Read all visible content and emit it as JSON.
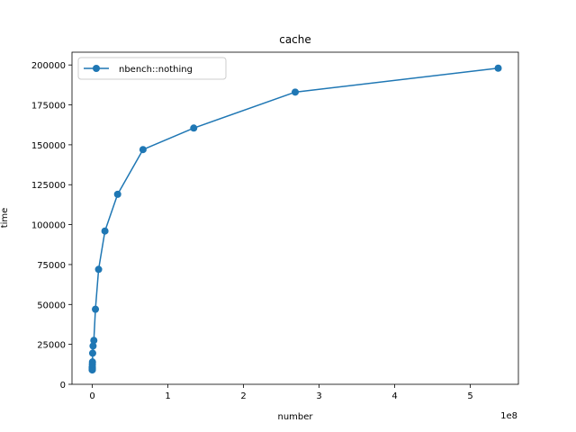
{
  "chart_data": {
    "type": "line",
    "title": "cache",
    "xlabel": "number",
    "ylabel": "time",
    "x_offset_label": "1e8",
    "xlim": [
      -26800000,
      563600000
    ],
    "ylim": [
      0,
      208000
    ],
    "xticks": [
      0,
      100000000,
      200000000,
      300000000,
      400000000,
      500000000
    ],
    "xtick_labels": [
      "0",
      "1",
      "2",
      "3",
      "4",
      "5"
    ],
    "yticks": [
      0,
      25000,
      50000,
      75000,
      100000,
      125000,
      150000,
      175000,
      200000
    ],
    "ytick_labels": [
      "0",
      "25000",
      "50000",
      "75000",
      "100000",
      "125000",
      "150000",
      "175000",
      "200000"
    ],
    "grid": false,
    "legend_position": "top-left",
    "series": [
      {
        "name": "nbench::nothing",
        "color": "#1f77b4",
        "marker": "circle",
        "x": [
          1,
          2,
          4,
          8,
          16,
          32,
          64,
          128,
          256,
          512,
          1024,
          2048,
          4096,
          8192,
          16384,
          32768,
          65536,
          131072,
          262144,
          524288,
          1048576,
          2097152,
          4194304,
          8388608,
          16777216,
          33554432,
          67108864,
          134217728,
          268435456,
          536870912
        ],
        "y": [
          9000,
          9100,
          9200,
          9300,
          9400,
          9500,
          9600,
          9700,
          9800,
          9900,
          10000,
          10100,
          10200,
          10300,
          10400,
          10500,
          11000,
          12500,
          14000,
          19500,
          24000,
          27500,
          47000,
          72000,
          96000,
          119000,
          147000,
          160500,
          183000,
          198000
        ]
      }
    ]
  }
}
